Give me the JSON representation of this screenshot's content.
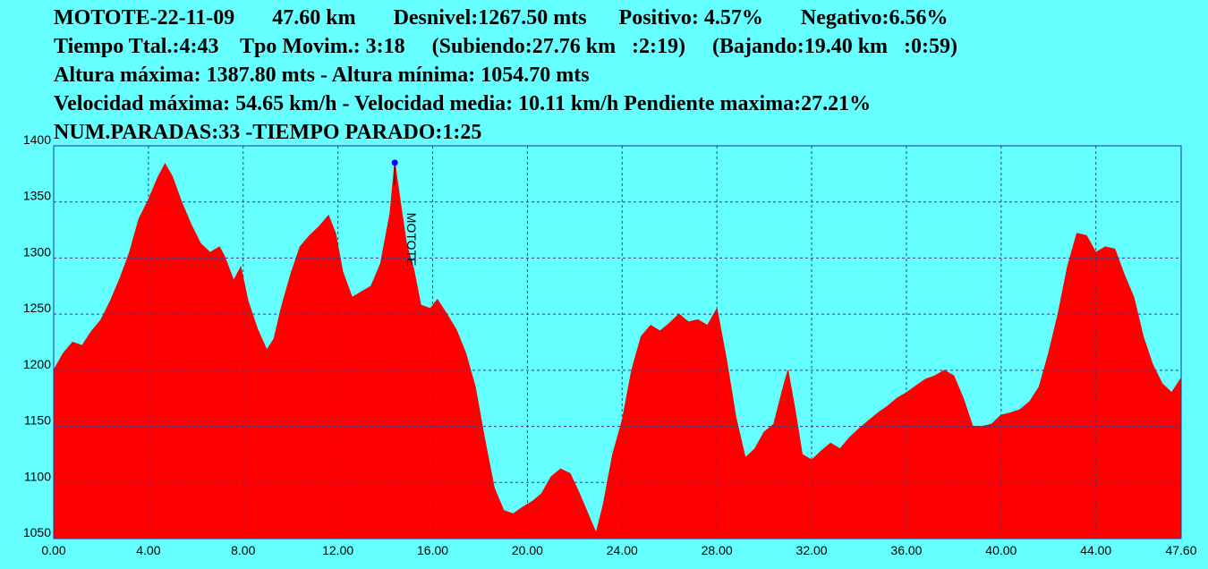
{
  "header": {
    "line1": "MOTOTE-22-11-09       47.60 km       Desnivel:1267.50 mts      Positivo: 4.57%       Negativo:6.56%",
    "line2": "Tiempo Ttal.:4:43    Tpo Movim.: 3:18     (Subiendo:27.76 km   :2:19)     (Bajando:19.40 km   :0:59)",
    "line3": "Altura máxima: 1387.80 mts - Altura mínima: 1054.70 mts",
    "line4": "Velocidad máxima: 54.65 km/h - Velocidad media: 10.11 km/h Pendiente maxima:27.21%",
    "line5": "NUM.PARADAS:33 -TIEMPO PARADO:1:25"
  },
  "colors": {
    "background": "#66ffff",
    "fill": "#ff0000",
    "grid": "#3a3a8a",
    "frame": "#2233aa",
    "marker": "#0000ff"
  },
  "chart_data": {
    "type": "area",
    "xlim": [
      0,
      47.6
    ],
    "ylim": [
      1050,
      1400
    ],
    "x_ticks": [
      "0.00",
      "4.00",
      "8.00",
      "12.00",
      "16.00",
      "20.00",
      "24.00",
      "28.00",
      "32.00",
      "36.00",
      "40.00",
      "44.00",
      "47.60"
    ],
    "y_ticks": [
      "1050",
      "1100",
      "1150",
      "1200",
      "1250",
      "1300",
      "1350",
      "1400"
    ],
    "grid": true,
    "annotation": {
      "label": "MOTOTE",
      "x": 14.4,
      "y": 1385
    },
    "series": [
      {
        "x": [
          0,
          0.4,
          0.8,
          1.2,
          1.6,
          2.0,
          2.4,
          2.8,
          3.2,
          3.6,
          4.0,
          4.4,
          4.7,
          5.0,
          5.4,
          5.8,
          6.2,
          6.6,
          7.0,
          7.2,
          7.6,
          7.9,
          8.2,
          8.6,
          9.0,
          9.3,
          9.6,
          10.0,
          10.4,
          10.8,
          11.2,
          11.6,
          11.9,
          12.2,
          12.6,
          13.0,
          13.4,
          13.8,
          14.2,
          14.4,
          14.6,
          14.9,
          15.2,
          15.5,
          15.9,
          16.2,
          16.6,
          17.0,
          17.4,
          17.8,
          18.2,
          18.6,
          19.0,
          19.4,
          19.8,
          20.2,
          20.6,
          21.0,
          21.4,
          21.8,
          22.2,
          22.6,
          22.9,
          23.2,
          23.6,
          24.0,
          24.4,
          24.8,
          25.2,
          25.6,
          26.0,
          26.4,
          26.8,
          27.2,
          27.6,
          28.0,
          28.4,
          28.8,
          29.2,
          29.6,
          30.0,
          30.4,
          30.8,
          31.0,
          31.3,
          31.6,
          32.0,
          32.4,
          32.8,
          33.2,
          33.6,
          34.0,
          34.4,
          34.8,
          35.2,
          35.6,
          36.0,
          36.4,
          36.8,
          37.2,
          37.6,
          38.0,
          38.4,
          38.8,
          39.2,
          39.6,
          40.0,
          40.4,
          40.8,
          41.2,
          41.6,
          42.0,
          42.4,
          42.8,
          43.2,
          43.6,
          44.0,
          44.4,
          44.8,
          45.2,
          45.6,
          46.0,
          46.4,
          46.8,
          47.2,
          47.6
        ],
        "y": [
          1200,
          1215,
          1225,
          1222,
          1235,
          1245,
          1262,
          1282,
          1305,
          1335,
          1352,
          1372,
          1384,
          1373,
          1350,
          1330,
          1313,
          1305,
          1310,
          1302,
          1280,
          1292,
          1262,
          1237,
          1218,
          1228,
          1255,
          1285,
          1310,
          1320,
          1328,
          1338,
          1322,
          1288,
          1265,
          1270,
          1275,
          1295,
          1340,
          1385,
          1355,
          1312,
          1290,
          1258,
          1255,
          1263,
          1250,
          1236,
          1215,
          1185,
          1138,
          1095,
          1075,
          1072,
          1078,
          1083,
          1090,
          1105,
          1112,
          1108,
          1090,
          1070,
          1055,
          1080,
          1125,
          1155,
          1200,
          1230,
          1240,
          1235,
          1242,
          1250,
          1243,
          1245,
          1240,
          1255,
          1210,
          1158,
          1122,
          1130,
          1145,
          1152,
          1185,
          1200,
          1165,
          1125,
          1120,
          1128,
          1135,
          1130,
          1140,
          1148,
          1155,
          1162,
          1168,
          1175,
          1180,
          1186,
          1192,
          1195,
          1200,
          1195,
          1175,
          1150,
          1150,
          1152,
          1160,
          1162,
          1165,
          1172,
          1185,
          1215,
          1250,
          1292,
          1322,
          1320,
          1305,
          1310,
          1308,
          1285,
          1265,
          1230,
          1205,
          1188,
          1180,
          1193
        ]
      }
    ]
  }
}
